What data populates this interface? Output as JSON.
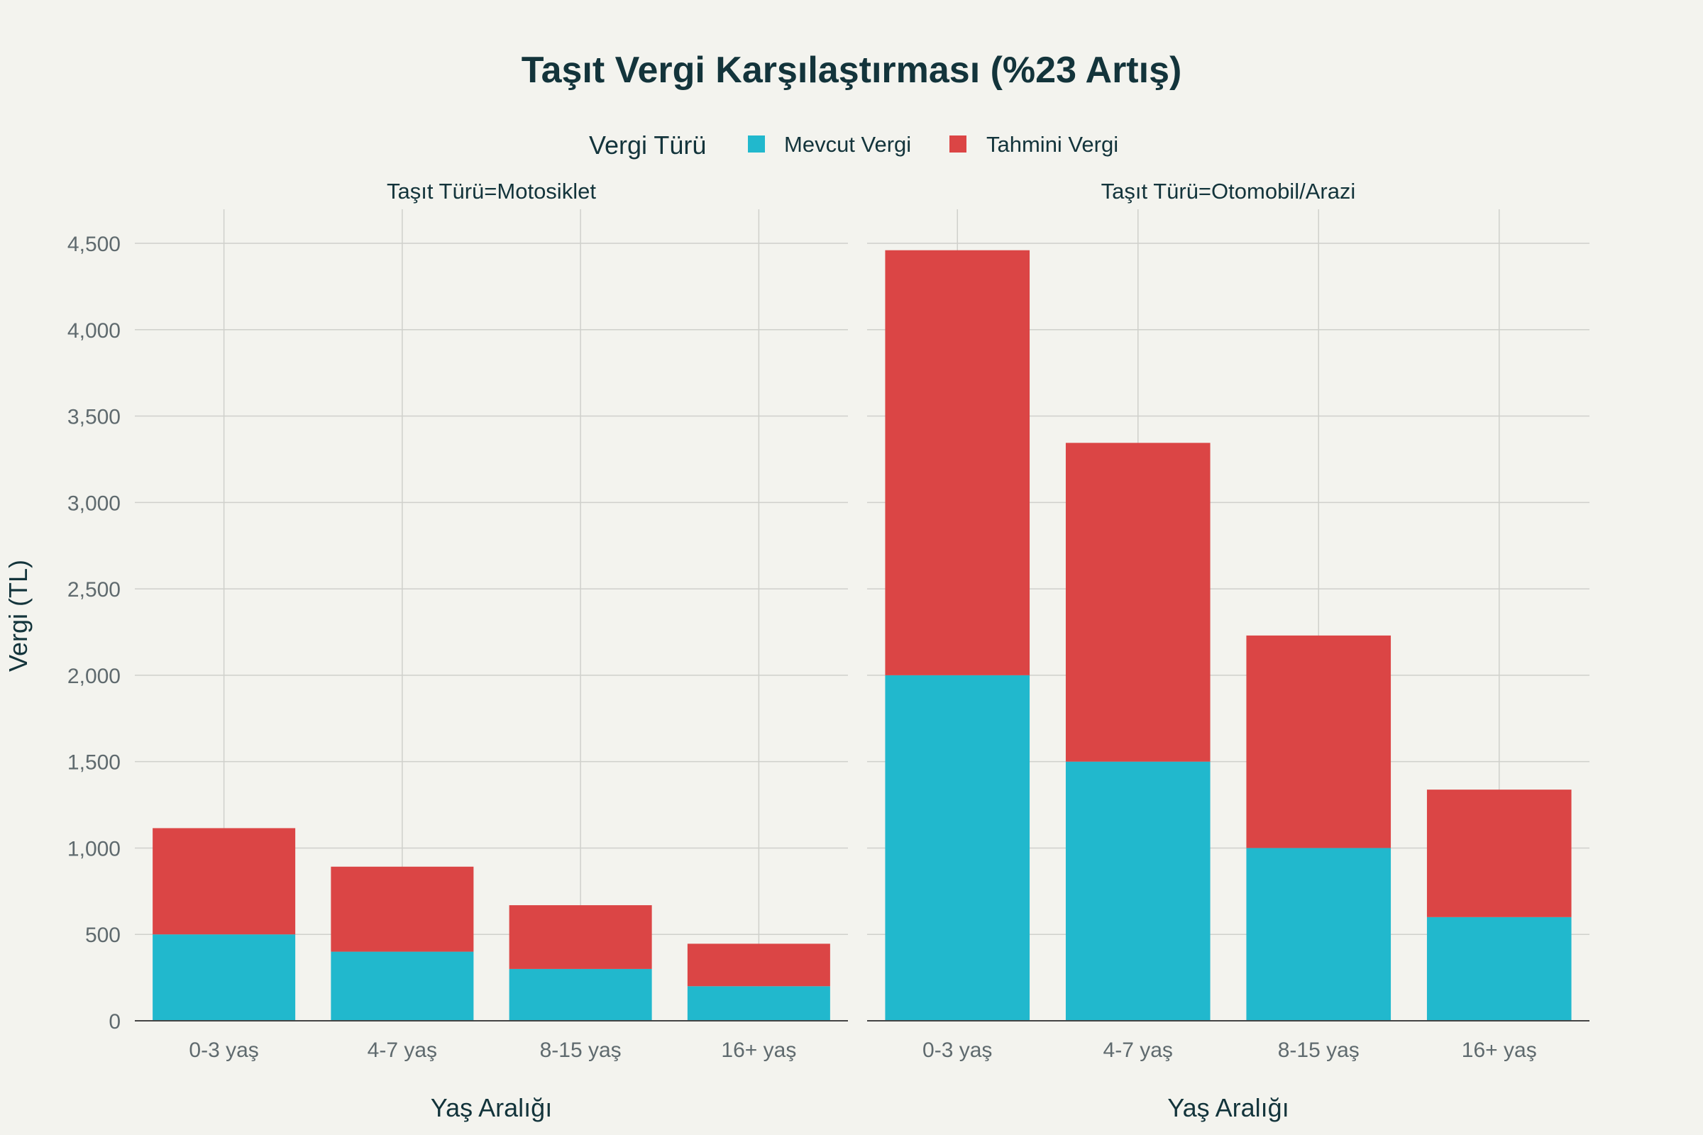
{
  "chart_data": {
    "type": "bar",
    "barmode": "stacked",
    "title": "Taşıt Vergi Karşılaştırması (%23 Artış)",
    "legend": {
      "title": "Vergi Türü",
      "placement": "top-center",
      "entries": [
        "Mevcut Vergi",
        "Tahmini Vergi"
      ]
    },
    "colors": {
      "Mevcut Vergi": "#21b8cd",
      "Tahmini Vergi": "#db4545"
    },
    "ylabel": "Vergi (TL)",
    "ylim": [
      0,
      4700
    ],
    "yticks": [
      0,
      500,
      1000,
      1500,
      2000,
      2500,
      3000,
      3500,
      4000,
      4500
    ],
    "ytick_labels": [
      "0",
      "500",
      "1,000",
      "1,500",
      "2,000",
      "2,500",
      "3,000",
      "3,500",
      "4,000",
      "4,500"
    ],
    "grid": true,
    "categories": [
      "0-3 yaş",
      "4-7 yaş",
      "8-15 yaş",
      "16+ yaş"
    ],
    "panels": [
      {
        "title": "Taşıt Türü=Motosiklet",
        "xlabel": "Yaş Aralığı",
        "series": [
          {
            "name": "Mevcut Vergi",
            "values": [
              500,
              400,
              300,
              200
            ]
          },
          {
            "name": "Tahmini Vergi",
            "values": [
              615,
              492,
              369,
              246
            ]
          }
        ]
      },
      {
        "title": "Taşıt Türü=Otomobil/Arazi",
        "xlabel": "Yaş Aralığı",
        "series": [
          {
            "name": "Mevcut Vergi",
            "values": [
              2000,
              1500,
              1000,
              600
            ]
          },
          {
            "name": "Tahmini Vergi",
            "values": [
              2460,
              1845,
              1230,
              738
            ]
          }
        ]
      }
    ]
  }
}
